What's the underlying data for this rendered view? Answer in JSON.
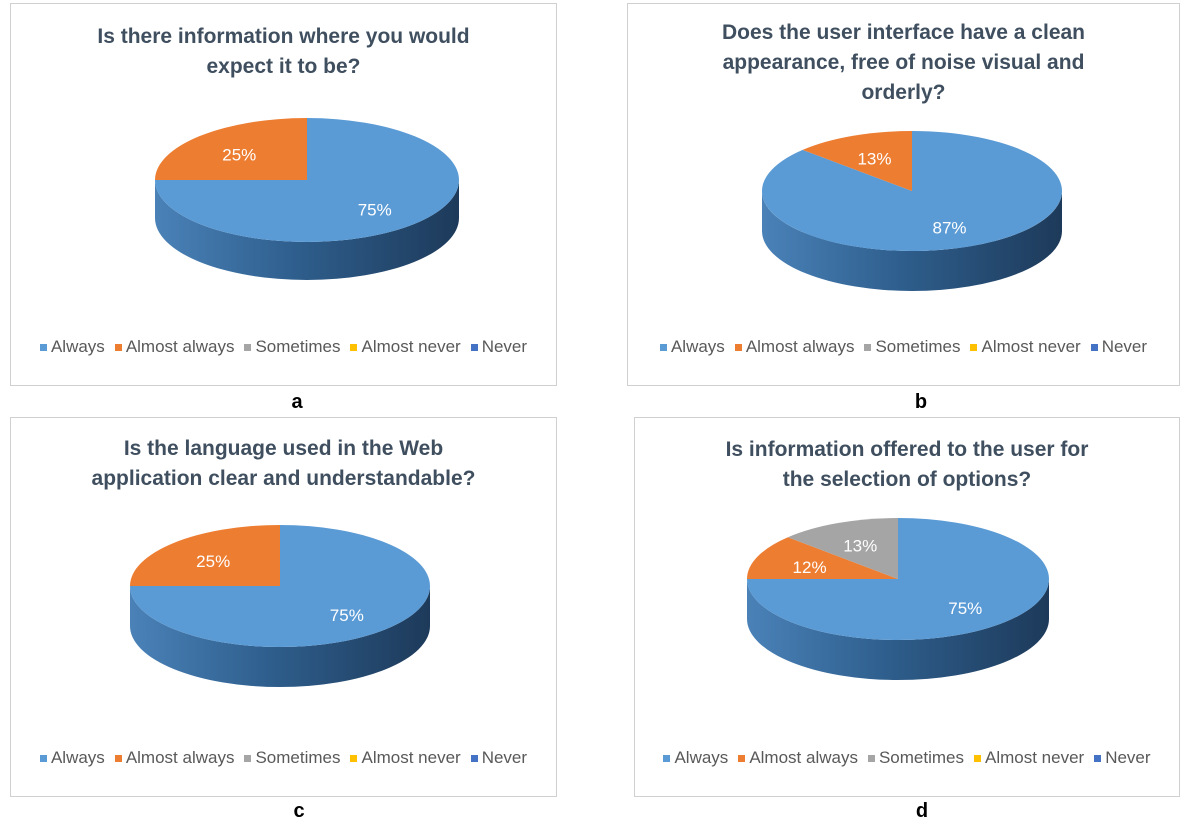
{
  "colors": {
    "Always": "#5b9bd5",
    "Almost always": "#ed7d31",
    "Sometimes": "#a5a5a5",
    "Almost never": "#ffc000",
    "Never": "#4472c4"
  },
  "legend_labels": [
    "Always",
    "Almost always",
    "Sometimes",
    "Almost never",
    "Never"
  ],
  "chart_data": [
    {
      "type": "pie",
      "caption": "a",
      "title": "Is there information where you would\nexpect it to be?",
      "legend": "bottom",
      "labels": [
        "Always",
        "Almost always",
        "Sometimes",
        "Almost never",
        "Never"
      ],
      "values": [
        75,
        25,
        0,
        0,
        0
      ],
      "data_labels": [
        "75%",
        "25%",
        "",
        "",
        ""
      ]
    },
    {
      "type": "pie",
      "caption": "b",
      "title": "Does the user interface have a clean\nappearance, free of noise visual and\norderly?",
      "legend": "bottom",
      "labels": [
        "Always",
        "Almost always",
        "Sometimes",
        "Almost never",
        "Never"
      ],
      "values": [
        87,
        13,
        0,
        0,
        0
      ],
      "data_labels": [
        "87%",
        "13%",
        "",
        "",
        ""
      ]
    },
    {
      "type": "pie",
      "caption": "c",
      "title": "Is the language used in the Web\napplication clear and understandable?",
      "legend": "bottom",
      "labels": [
        "Always",
        "Almost always",
        "Sometimes",
        "Almost never",
        "Never"
      ],
      "values": [
        75,
        25,
        0,
        0,
        0
      ],
      "data_labels": [
        "75%",
        "25%",
        "",
        "",
        ""
      ]
    },
    {
      "type": "pie",
      "caption": "d",
      "title": "Is information offered to the user for\nthe selection of options?",
      "legend": "bottom",
      "labels": [
        "Always",
        "Almost always",
        "Sometimes",
        "Almost never",
        "Never"
      ],
      "values": [
        75,
        12,
        13,
        0,
        0
      ],
      "data_labels": [
        "75%",
        "12%",
        "13%",
        "",
        ""
      ]
    }
  ]
}
